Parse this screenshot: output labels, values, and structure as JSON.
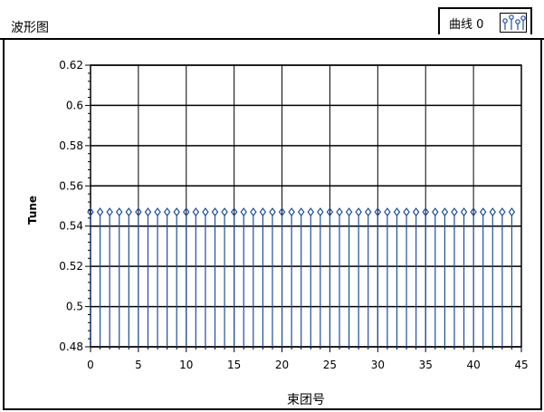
{
  "window": {
    "title": "波形图",
    "curve_label": "曲线 0",
    "curve_icon": "stem-plot-icon"
  },
  "colors": {
    "stem": "#1f4e9c",
    "grid": "#000000",
    "background": "#ffffff"
  },
  "chart_data": {
    "type": "stem",
    "xlabel": "束团号",
    "ylabel": "Tune",
    "xlim": [
      0,
      45
    ],
    "ylim": [
      0.48,
      0.62
    ],
    "xticks": [
      0,
      5,
      10,
      15,
      20,
      25,
      30,
      35,
      40,
      45
    ],
    "yticks": [
      0.48,
      0.5,
      0.52,
      0.54,
      0.56,
      0.58,
      0.6,
      0.62
    ],
    "ytick_labels": [
      "0.48",
      "0.5",
      "0.52",
      "0.54",
      "0.56",
      "0.58",
      "0.6",
      "0.62"
    ],
    "grid": true,
    "series": [
      {
        "x": [
          0,
          1,
          2,
          3,
          4,
          5,
          6,
          7,
          8,
          9,
          10,
          11,
          12,
          13,
          14,
          15,
          16,
          17,
          18,
          19,
          20,
          21,
          22,
          23,
          24,
          25,
          26,
          27,
          28,
          29,
          30,
          31,
          32,
          33,
          34,
          35,
          36,
          37,
          38,
          39,
          40,
          41,
          42,
          43,
          44
        ],
        "values": [
          0.547,
          0.547,
          0.547,
          0.547,
          0.547,
          0.547,
          0.547,
          0.547,
          0.547,
          0.547,
          0.547,
          0.547,
          0.547,
          0.547,
          0.547,
          0.547,
          0.547,
          0.547,
          0.547,
          0.547,
          0.547,
          0.547,
          0.547,
          0.547,
          0.547,
          0.547,
          0.547,
          0.547,
          0.547,
          0.547,
          0.547,
          0.547,
          0.547,
          0.547,
          0.547,
          0.547,
          0.547,
          0.547,
          0.547,
          0.547,
          0.547,
          0.547,
          0.547,
          0.547,
          0.547
        ]
      }
    ]
  }
}
